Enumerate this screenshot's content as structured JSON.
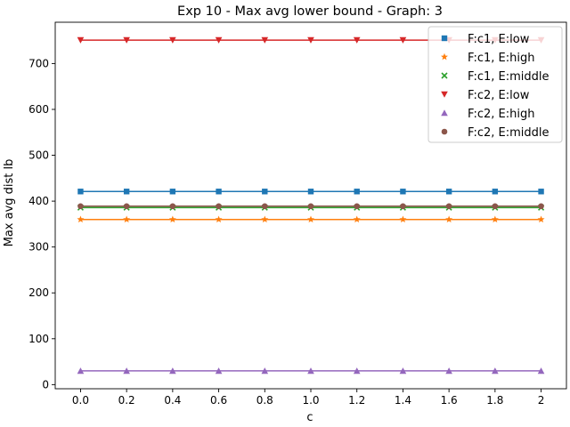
{
  "chart_data": {
    "type": "line",
    "title": "Exp 10 - Max avg lower bound - Graph: 3",
    "xlabel": "c",
    "ylabel": "Max avg dist lb",
    "x": [
      0.0,
      0.2,
      0.4,
      0.6,
      0.8,
      1.0,
      1.2,
      1.4,
      1.6,
      1.8,
      2.0
    ],
    "x_tick_labels": [
      "0.0",
      "0.2",
      "0.4",
      "0.6",
      "0.8",
      "1.0",
      "1.2",
      "1.4",
      "1.6",
      "1.8",
      "2"
    ],
    "y_ticks": [
      0,
      100,
      200,
      300,
      400,
      500,
      600,
      700
    ],
    "xlim": [
      -0.11,
      2.11
    ],
    "ylim": [
      -9,
      790
    ],
    "grid": false,
    "legend_position": "top-right",
    "series": [
      {
        "name": "F:c1, E:low",
        "color": "#1f77b4",
        "marker": "square",
        "values": [
          421,
          421,
          421,
          421,
          421,
          421,
          421,
          421,
          421,
          421,
          421
        ]
      },
      {
        "name": "F:c1, E:high",
        "color": "#ff7f0e",
        "marker": "star",
        "values": [
          360,
          360,
          360,
          360,
          360,
          360,
          360,
          360,
          360,
          360,
          360
        ]
      },
      {
        "name": "F:c1, E:middle",
        "color": "#2ca02c",
        "marker": "x",
        "values": [
          386,
          386,
          386,
          386,
          386,
          386,
          386,
          386,
          386,
          386,
          386
        ]
      },
      {
        "name": "F:c2, E:low",
        "color": "#d62728",
        "marker": "triangle-down",
        "values": [
          751,
          751,
          751,
          751,
          751,
          751,
          751,
          751,
          751,
          751,
          751
        ]
      },
      {
        "name": "F:c2, E:high",
        "color": "#9467bd",
        "marker": "triangle-up",
        "values": [
          30,
          30,
          30,
          30,
          30,
          30,
          30,
          30,
          30,
          30,
          30
        ]
      },
      {
        "name": "F:c2, E:middle",
        "color": "#8c564b",
        "marker": "circle",
        "values": [
          389,
          389,
          389,
          389,
          389,
          389,
          389,
          389,
          389,
          389,
          389
        ]
      }
    ]
  }
}
